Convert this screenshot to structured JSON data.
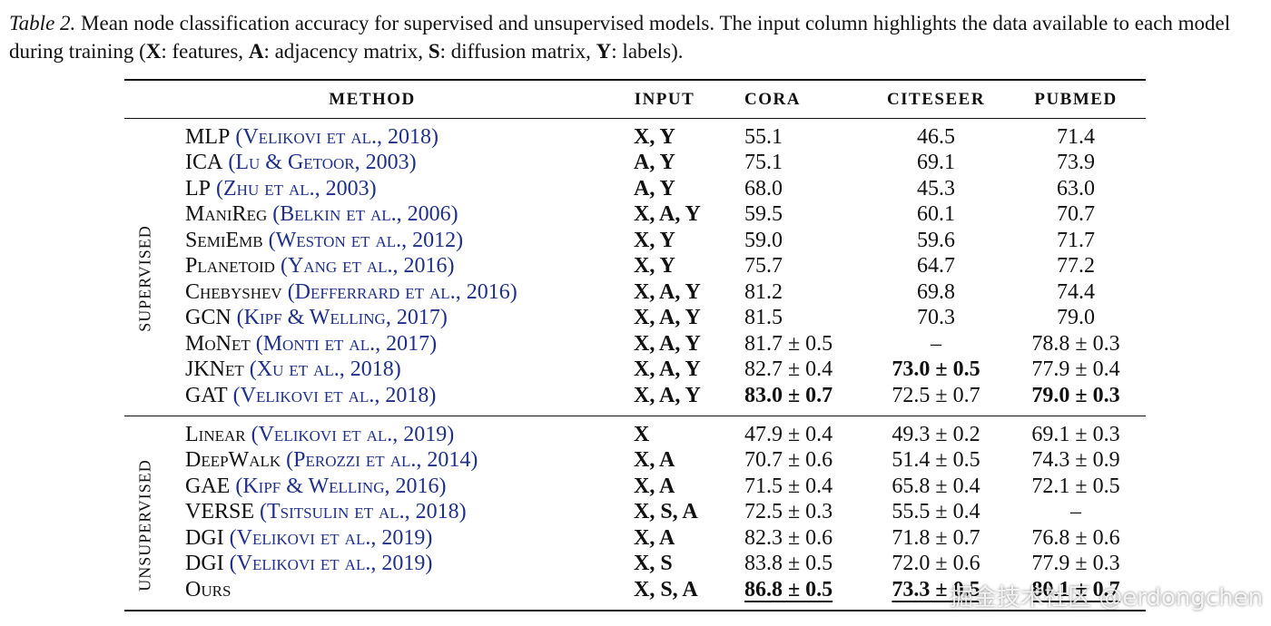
{
  "caption": {
    "label": "Table 2.",
    "parts": [
      {
        "text": " Mean node classification accuracy for supervised and unsupervised models. The input column highlights the data available to each model during training ("
      },
      {
        "text": "X",
        "bold": true
      },
      {
        "text": ": features, "
      },
      {
        "text": "A",
        "bold": true
      },
      {
        "text": ": adjacency matrix, "
      },
      {
        "text": "S",
        "bold": true
      },
      {
        "text": ": diffusion matrix, "
      },
      {
        "text": "Y",
        "bold": true
      },
      {
        "text": ": labels)."
      }
    ]
  },
  "table": {
    "header": {
      "method": "METHOD",
      "input": "INPUT",
      "cora": "CORA",
      "citeseer": "CITESEER",
      "pubmed": "PUBMED"
    },
    "groups": [
      {
        "label": "SUPERVISED",
        "rows": [
          {
            "method": "MLP",
            "citation": "(Velikovi et al., 2018)",
            "input": "X, Y",
            "cora": "55.1",
            "citeseer": "46.5",
            "pubmed": "71.4"
          },
          {
            "method": "ICA",
            "citation": "(Lu & Getoor, 2003)",
            "input": "A, Y",
            "cora": "75.1",
            "citeseer": "69.1",
            "pubmed": "73.9"
          },
          {
            "method": "LP",
            "citation": "(Zhu et al., 2003)",
            "input": "A, Y",
            "cora": "68.0",
            "citeseer": "45.3",
            "pubmed": "63.0"
          },
          {
            "method": "ManiReg",
            "citation": "(Belkin et al., 2006)",
            "input": "X, A, Y",
            "cora": "59.5",
            "citeseer": "60.1",
            "pubmed": "70.7"
          },
          {
            "method": "SemiEmb",
            "citation": "(Weston et al., 2012)",
            "input": "X, Y",
            "cora": "59.0",
            "citeseer": "59.6",
            "pubmed": "71.7"
          },
          {
            "method": "Planetoid",
            "citation": "(Yang et al., 2016)",
            "input": "X, Y",
            "cora": "75.7",
            "citeseer": "64.7",
            "pubmed": "77.2"
          },
          {
            "method": "Chebyshev",
            "citation": "(Defferrard et al., 2016)",
            "input": "X, A, Y",
            "cora": "81.2",
            "citeseer": "69.8",
            "pubmed": "74.4"
          },
          {
            "method": "GCN",
            "citation": "(Kipf & Welling, 2017)",
            "input": "X, A, Y",
            "cora": "81.5",
            "citeseer": "70.3",
            "pubmed": "79.0"
          },
          {
            "method": "MoNet",
            "citation": "(Monti et al., 2017)",
            "input": "X, A, Y",
            "cora": "81.7 ± 0.5",
            "citeseer": "–",
            "pubmed": "78.8 ± 0.3"
          },
          {
            "method": "JKNet",
            "citation": "(Xu et al., 2018)",
            "input": "X, A, Y",
            "cora": "82.7 ± 0.4",
            "citeseer": "73.0 ± 0.5",
            "pubmed": "77.9 ± 0.4",
            "bold": [
              "citeseer"
            ]
          },
          {
            "method": "GAT",
            "citation": "(Velikovi et al., 2018)",
            "input": "X, A, Y",
            "cora": "83.0 ± 0.7",
            "citeseer": "72.5 ± 0.7",
            "pubmed": "79.0 ± 0.3",
            "bold": [
              "cora",
              "pubmed"
            ]
          }
        ]
      },
      {
        "label": "UNSUPERVISED",
        "rows": [
          {
            "method": "Linear",
            "citation": "(Velikovi et al., 2019)",
            "input": "X",
            "cora": "47.9 ± 0.4",
            "citeseer": "49.3 ± 0.2",
            "pubmed": "69.1 ± 0.3"
          },
          {
            "method": "DeepWalk",
            "citation": "(Perozzi et al., 2014)",
            "input": "X, A",
            "cora": "70.7 ± 0.6",
            "citeseer": "51.4 ± 0.5",
            "pubmed": "74.3 ± 0.9"
          },
          {
            "method": "GAE",
            "citation": "(Kipf & Welling, 2016)",
            "input": "X, A",
            "cora": "71.5 ± 0.4",
            "citeseer": "65.8 ± 0.4",
            "pubmed": "72.1 ± 0.5"
          },
          {
            "method": "VERSE",
            "citation": "(Tsitsulin et al., 2018)",
            "input": "X, S, A",
            "cora": "72.5 ± 0.3",
            "citeseer": "55.5 ± 0.4",
            "pubmed": "–"
          },
          {
            "method": "DGI",
            "citation": "(Velikovi et al., 2019)",
            "input": "X, A",
            "cora": "82.3 ± 0.6",
            "citeseer": "71.8 ± 0.7",
            "pubmed": "76.8 ± 0.6"
          },
          {
            "method": "DGI",
            "citation": "(Velikovi et al., 2019)",
            "input": "X, S",
            "cora": "83.8 ± 0.5",
            "citeseer": "72.0 ± 0.6",
            "pubmed": "77.9 ± 0.3"
          },
          {
            "method": "Ours",
            "input": "X, S, A",
            "cora": "86.8 ± 0.5",
            "citeseer": "73.3 ± 0.5",
            "pubmed": "80.1 ± 0.7",
            "bold": [
              "cora",
              "citeseer",
              "pubmed"
            ],
            "underline": [
              "cora",
              "citeseer",
              "pubmed"
            ]
          }
        ]
      }
    ]
  },
  "watermark": "掘金技术社区 @erdongchen"
}
